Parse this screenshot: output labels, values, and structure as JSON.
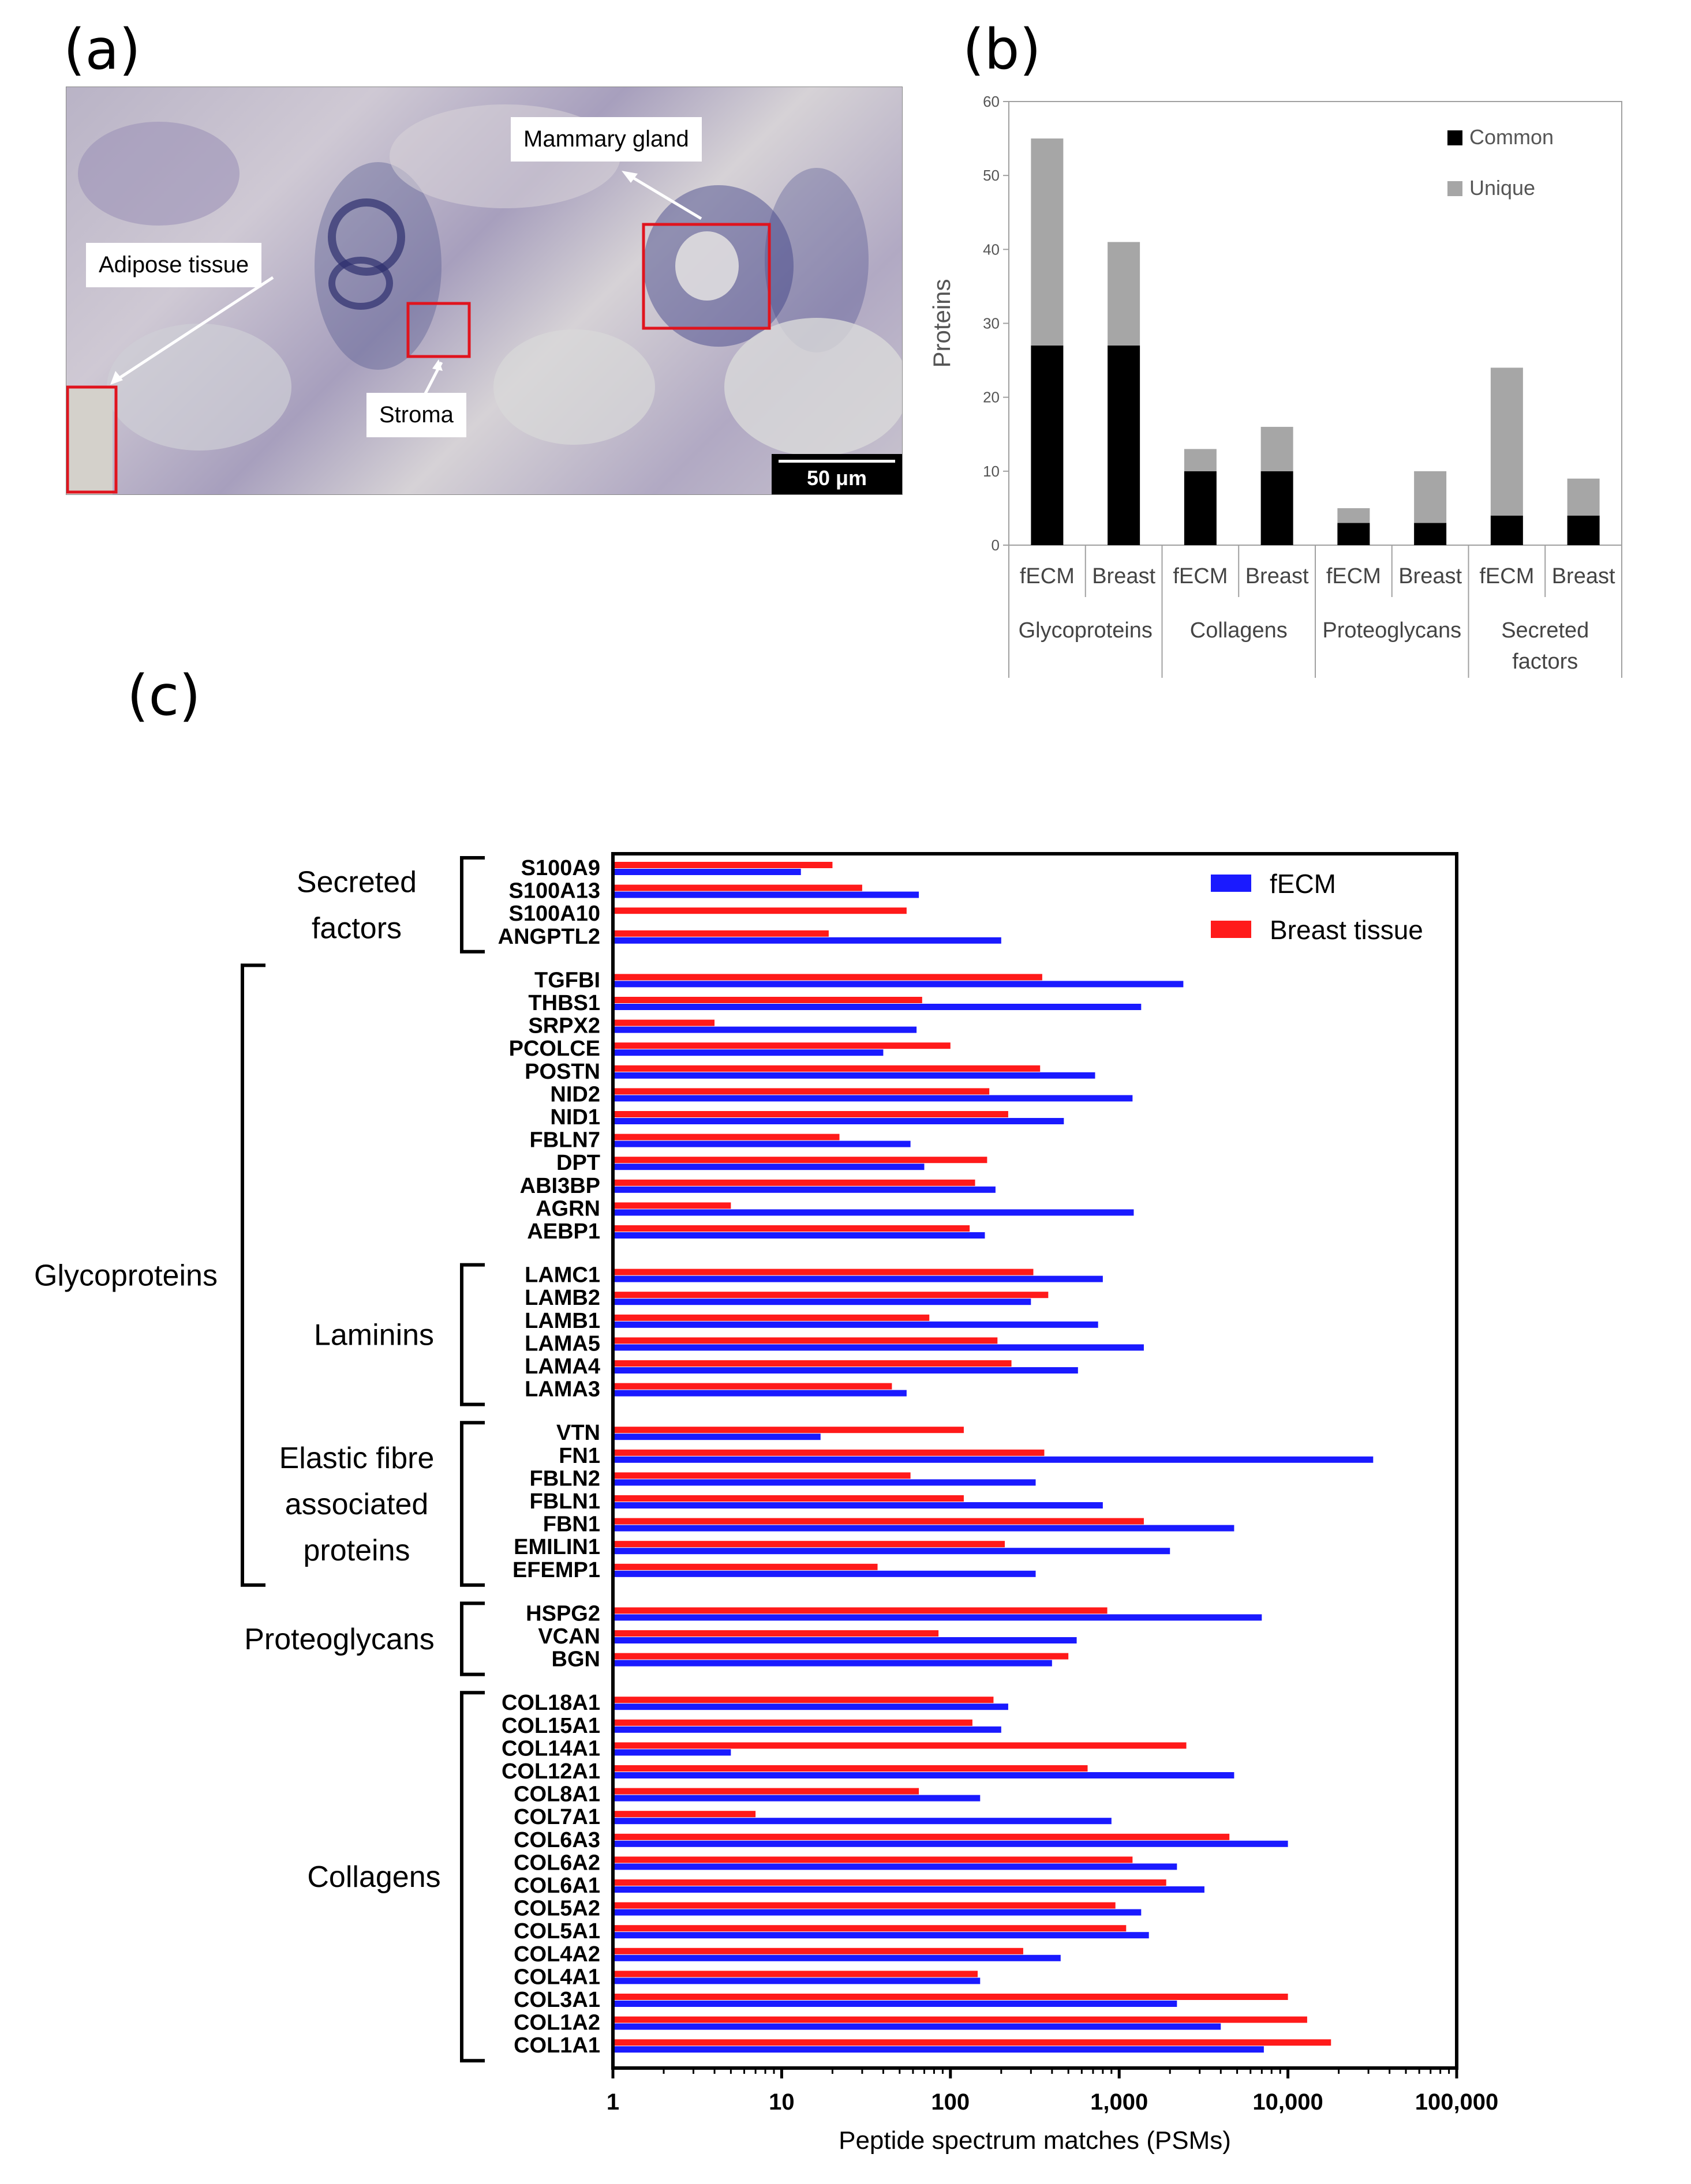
{
  "panels": {
    "a": "(a)",
    "b": "(b)",
    "c": "(c)"
  },
  "micrograph": {
    "labels": {
      "mammary": "Mammary gland",
      "adipose": "Adipose tissue",
      "stroma": "Stroma"
    },
    "scalebar": "50 μm"
  },
  "chart_data": [
    {
      "type": "bar",
      "stacked": true,
      "ylabel": "Proteins",
      "ylim": [
        0,
        60
      ],
      "yticks": [
        0,
        10,
        20,
        30,
        40,
        50,
        60
      ],
      "groups": [
        "Glycoproteins",
        "Collagens",
        "Proteoglycans",
        "Secreted factors"
      ],
      "categories": [
        "fECM",
        "Breast",
        "fECM",
        "Breast",
        "fECM",
        "Breast",
        "fECM",
        "Breast"
      ],
      "series": [
        {
          "name": "Common",
          "color": "#000000",
          "values": [
            27,
            27,
            10,
            10,
            3,
            3,
            4,
            4
          ]
        },
        {
          "name": "Unique",
          "color": "#a6a6a6",
          "values": [
            28,
            14,
            3,
            6,
            2,
            7,
            20,
            5
          ]
        }
      ],
      "legend": "top-right"
    },
    {
      "type": "bar",
      "orientation": "horizontal",
      "xscale": "log",
      "xlabel": "Peptide spectrum matches (PSMs)",
      "xlim": [
        1,
        100000
      ],
      "xticks": [
        "1",
        "10",
        "100",
        "1,000",
        "10,000",
        "100,000"
      ],
      "series": [
        {
          "name": "fECM",
          "color": "#1a1aff"
        },
        {
          "name": "Breast tissue",
          "color": "#ff1a1a"
        }
      ],
      "legend": "top-right",
      "groups": [
        {
          "label": "Secreted factors",
          "lines": [
            "Secreted",
            "factors"
          ],
          "proteins": [
            {
              "name": "S100A9",
              "fecm": 13,
              "breast": 20
            },
            {
              "name": "S100A13",
              "fecm": 65,
              "breast": 30
            },
            {
              "name": "S100A10",
              "fecm": null,
              "breast": 55
            },
            {
              "name": "ANGPTL2",
              "fecm": 200,
              "breast": 19
            }
          ]
        },
        {
          "label": "Glycoproteins",
          "lines": [
            "Glycoproteins"
          ],
          "proteins": [
            {
              "name": "TGFBI",
              "fecm": 2400,
              "breast": 350
            },
            {
              "name": "THBS1",
              "fecm": 1350,
              "breast": 68
            },
            {
              "name": "SRPX2",
              "fecm": 63,
              "breast": 4
            },
            {
              "name": "PCOLCE",
              "fecm": 40,
              "breast": 100
            },
            {
              "name": "POSTN",
              "fecm": 720,
              "breast": 340
            },
            {
              "name": "NID2",
              "fecm": 1200,
              "breast": 170
            },
            {
              "name": "NID1",
              "fecm": 470,
              "breast": 220
            },
            {
              "name": "FBLN7",
              "fecm": 58,
              "breast": 22
            },
            {
              "name": "DPT",
              "fecm": 70,
              "breast": 165
            },
            {
              "name": "ABI3BP",
              "fecm": 185,
              "breast": 140
            },
            {
              "name": "AGRN",
              "fecm": 1220,
              "breast": 5
            },
            {
              "name": "AEBP1",
              "fecm": 160,
              "breast": 130
            }
          ]
        },
        {
          "label": "Laminins",
          "lines": [
            "Laminins"
          ],
          "proteins": [
            {
              "name": "LAMC1",
              "fecm": 800,
              "breast": 310
            },
            {
              "name": "LAMB2",
              "fecm": 300,
              "breast": 380
            },
            {
              "name": "LAMB1",
              "fecm": 750,
              "breast": 75
            },
            {
              "name": "LAMA5",
              "fecm": 1400,
              "breast": 190
            },
            {
              "name": "LAMA4",
              "fecm": 570,
              "breast": 230
            },
            {
              "name": "LAMA3",
              "fecm": 55,
              "breast": 45
            }
          ]
        },
        {
          "label": "Elastic fibre associated proteins",
          "lines": [
            "Elastic fibre",
            "associated",
            "proteins"
          ],
          "proteins": [
            {
              "name": "VTN",
              "fecm": 17,
              "breast": 120
            },
            {
              "name": "FN1",
              "fecm": 32000,
              "breast": 360
            },
            {
              "name": "FBLN2",
              "fecm": 320,
              "breast": 58
            },
            {
              "name": "FBLN1",
              "fecm": 800,
              "breast": 120
            },
            {
              "name": "FBN1",
              "fecm": 4800,
              "breast": 1400
            },
            {
              "name": "EMILIN1",
              "fecm": 2000,
              "breast": 210
            },
            {
              "name": "EFEMP1",
              "fecm": 320,
              "breast": 37
            }
          ]
        },
        {
          "label": "Proteoglycans",
          "lines": [
            "Proteoglycans"
          ],
          "proteins": [
            {
              "name": "HSPG2",
              "fecm": 7000,
              "breast": 850
            },
            {
              "name": "VCAN",
              "fecm": 560,
              "breast": 85
            },
            {
              "name": "BGN",
              "fecm": 400,
              "breast": 500
            }
          ]
        },
        {
          "label": "Collagens",
          "lines": [
            "Collagens"
          ],
          "proteins": [
            {
              "name": "COL18A1",
              "fecm": 220,
              "breast": 180
            },
            {
              "name": "COL15A1",
              "fecm": 200,
              "breast": 135
            },
            {
              "name": "COL14A1",
              "fecm": 5,
              "breast": 2500
            },
            {
              "name": "COL12A1",
              "fecm": 4800,
              "breast": 650
            },
            {
              "name": "COL8A1",
              "fecm": 150,
              "breast": 65
            },
            {
              "name": "COL7A1",
              "fecm": 900,
              "breast": 7
            },
            {
              "name": "COL6A3",
              "fecm": 10000,
              "breast": 4500
            },
            {
              "name": "COL6A2",
              "fecm": 2200,
              "breast": 1200
            },
            {
              "name": "COL6A1",
              "fecm": 3200,
              "breast": 1900
            },
            {
              "name": "COL5A2",
              "fecm": 1350,
              "breast": 950
            },
            {
              "name": "COL5A1",
              "fecm": 1500,
              "breast": 1100
            },
            {
              "name": "COL4A2",
              "fecm": 450,
              "breast": 270
            },
            {
              "name": "COL4A1",
              "fecm": 150,
              "breast": 145
            },
            {
              "name": "COL3A1",
              "fecm": 2200,
              "breast": 10000
            },
            {
              "name": "COL1A2",
              "fecm": 4000,
              "breast": 13000
            },
            {
              "name": "COL1A1",
              "fecm": 7200,
              "breast": 18000
            }
          ]
        }
      ]
    }
  ]
}
